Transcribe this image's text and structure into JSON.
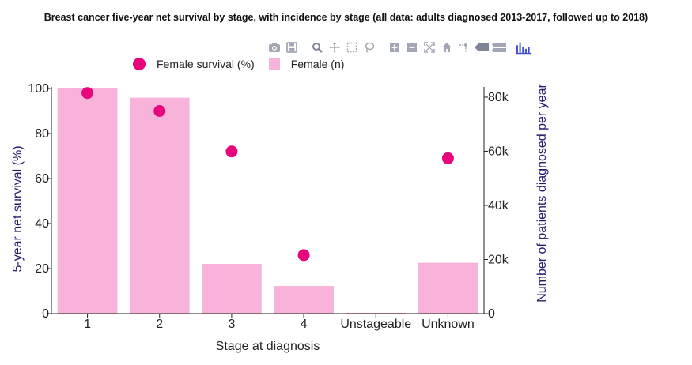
{
  "title": "Breast cancer five-year net survival by stage, with incidence by stage (all data: adults diagnosed 2013-2017, followed up to 2018)",
  "modebar": {
    "buttons": [
      "camera-icon",
      "save-icon",
      "zoom-icon",
      "pan-icon",
      "box-select-icon",
      "lasso-icon",
      "zoom-in-icon",
      "zoom-out-icon",
      "autoscale-icon",
      "home-icon",
      "spike-lines-icon",
      "hover-closest-icon",
      "hover-compare-icon",
      "plotly-logo-icon"
    ]
  },
  "colors": {
    "survival": "#e8067d",
    "bars": "#f7b3d9",
    "axis_title": "#2a1a6b",
    "text": "#222222",
    "axis_line": "#222222",
    "modebar_icon": "#a3a7b5",
    "modebar_active": "#7e8596",
    "plotly_logo": "#3f4fd8"
  },
  "legend": {
    "items": [
      {
        "label": "Female survival (%)",
        "kind": "marker"
      },
      {
        "label": "Female (n)",
        "kind": "bar"
      }
    ]
  },
  "chart_data": {
    "type": "bar+scatter",
    "categories": [
      "1",
      "2",
      "3",
      "4",
      "Unstageable",
      "Unknown"
    ],
    "series": [
      {
        "name": "Female (n)",
        "type": "bar",
        "axis": "y2",
        "values": [
          83200,
          79800,
          18400,
          10200,
          300,
          18800
        ]
      },
      {
        "name": "Female survival (%)",
        "type": "scatter",
        "axis": "y",
        "values": [
          98,
          90,
          72,
          26,
          null,
          69
        ]
      }
    ],
    "xlabel": "Stage at diagnosis",
    "ylabel": "5-year net survival (%)",
    "y2label": "Number of patients diagnosed per year",
    "ylim": [
      0,
      100
    ],
    "y2lim": [
      0,
      83200
    ],
    "yticks": [
      0,
      20,
      40,
      60,
      80,
      100
    ],
    "y2ticks": [
      0,
      20000,
      40000,
      60000,
      80000
    ],
    "y2ticklabels": [
      "0",
      "20k",
      "40k",
      "60k",
      "80k"
    ],
    "grid": false,
    "legend_position": "top"
  }
}
